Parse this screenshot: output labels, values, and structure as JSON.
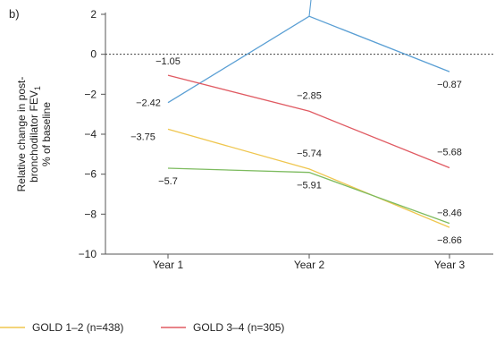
{
  "panel_label": "b)",
  "chart_data": {
    "type": "line",
    "title": "",
    "xlabel": "",
    "ylabel_lines": [
      "Relative change in post-",
      "bronchodilator FEV",
      "% of baseline"
    ],
    "ylabel_subscript": "1",
    "categories": [
      "Year 1",
      "Year 2",
      "Year 3"
    ],
    "ylim": [
      -10,
      2
    ],
    "yticks": [
      2,
      0,
      -2,
      -4,
      -6,
      -8,
      -10
    ],
    "ytick_labels": [
      "2",
      "0",
      "−2",
      "−4",
      "−6",
      "−8",
      "−10"
    ],
    "reference_line": 0,
    "grid": false,
    "legend_position": "bottom",
    "series": [
      {
        "name": "",
        "color": "#5a9fd4",
        "values": [
          -2.42,
          1.9,
          -0.87
        ],
        "labels": [
          "−2.42",
          "",
          "−0.87"
        ],
        "label_dx": [
          -22,
          0,
          0
        ],
        "label_dy": [
          4,
          0,
          18
        ]
      },
      {
        "name": "GOLD 3–4 (n=305)",
        "color": "#e05a62",
        "values": [
          -1.05,
          -2.85,
          -5.68
        ],
        "labels": [
          "−1.05",
          "−2.85",
          "−5.68"
        ],
        "label_dx": [
          0,
          0,
          0
        ],
        "label_dy": [
          -12,
          -14,
          -14
        ]
      },
      {
        "name": "GOLD 1–2 (n=438)",
        "color": "#efc64e",
        "values": [
          -3.75,
          -5.74,
          -8.66
        ],
        "labels": [
          "−3.75",
          "−5.74",
          "−8.66"
        ],
        "label_dx": [
          -28,
          0,
          0
        ],
        "label_dy": [
          12,
          -14,
          18
        ]
      },
      {
        "name": "",
        "color": "#7dbb5f",
        "values": [
          -5.7,
          -5.91,
          -8.46
        ],
        "labels": [
          "−5.7",
          "−5.91",
          "−8.46"
        ],
        "label_dx": [
          0,
          0,
          0
        ],
        "label_dy": [
          18,
          18,
          -8
        ]
      }
    ],
    "legend": [
      {
        "label": "GOLD 1–2 (n=438)",
        "color": "#efc64e"
      },
      {
        "label": "GOLD 3–4 (n=305)",
        "color": "#e05a62"
      }
    ]
  }
}
